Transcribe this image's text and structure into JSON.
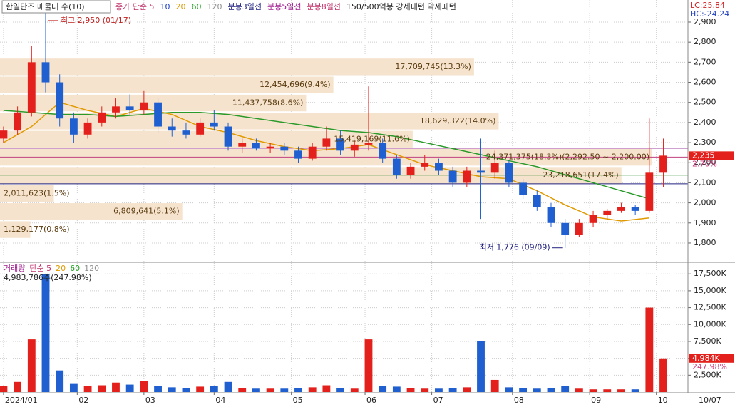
{
  "chart_data": {
    "type": "candlestick",
    "title": "한일단조 매물대 수(10)",
    "price_legend": [
      {
        "text": "종가 단순 5",
        "color": "#c0306a"
      },
      {
        "text": "10",
        "color": "#2040c0"
      },
      {
        "text": "20",
        "color": "#e09a00"
      },
      {
        "text": "60",
        "color": "#20a020"
      },
      {
        "text": "120",
        "color": "#909090"
      },
      {
        "text": "분봉3일선",
        "color": "#202080"
      },
      {
        "text": "분봉5일선",
        "color": "#a02090"
      },
      {
        "text": "분봉8일선",
        "color": "#c0306a"
      },
      {
        "text": "150/500억봉 강세패턴  약세패턴",
        "color": "#222222"
      }
    ],
    "corner_text": [
      "LC:25.84",
      "HC:-24.24"
    ],
    "xlim": [
      -1,
      195
    ],
    "xticks": [
      {
        "value": 0,
        "label": "2024/01"
      },
      {
        "value": 21,
        "label": "02"
      },
      {
        "value": 40,
        "label": "03"
      },
      {
        "value": 60,
        "label": "04"
      },
      {
        "value": 82,
        "label": "05"
      },
      {
        "value": 103,
        "label": "06"
      },
      {
        "value": 122,
        "label": "07"
      },
      {
        "value": 145,
        "label": "08"
      },
      {
        "value": 167,
        "label": "09"
      },
      {
        "value": 186,
        "label": "10"
      }
    ],
    "last_date": "10/07",
    "ylim": [
      1704,
      3010
    ],
    "yticks": [
      {
        "value": 1800,
        "label": "1,800"
      },
      {
        "value": 1900,
        "label": "1,900"
      },
      {
        "value": 2000,
        "label": "2,000"
      },
      {
        "value": 2100,
        "label": "2,100"
      },
      {
        "value": 2200,
        "label": "2,200"
      },
      {
        "value": 2300,
        "label": "2,300"
      },
      {
        "value": 2400,
        "label": "2,400"
      },
      {
        "value": 2500,
        "label": "2,500"
      },
      {
        "value": 2600,
        "label": "2,600"
      },
      {
        "value": 2700,
        "label": "2,700"
      },
      {
        "value": 2800,
        "label": "2,800"
      },
      {
        "value": 2900,
        "label": "2,900"
      }
    ],
    "grid": true,
    "up_color": "#e3201b",
    "down_color": "#1f5fcf",
    "candles": [
      {
        "x": 0,
        "open": 2320,
        "high": 2380,
        "low": 2300,
        "close": 2360
      },
      {
        "x": 4,
        "open": 2360,
        "high": 2480,
        "low": 2340,
        "close": 2450
      },
      {
        "x": 8,
        "open": 2450,
        "high": 2780,
        "low": 2430,
        "close": 2700
      },
      {
        "x": 12,
        "open": 2700,
        "high": 2950,
        "low": 2550,
        "close": 2600
      },
      {
        "x": 16,
        "open": 2600,
        "high": 2640,
        "low": 2380,
        "close": 2420
      },
      {
        "x": 20,
        "open": 2420,
        "high": 2450,
        "low": 2300,
        "close": 2340
      },
      {
        "x": 24,
        "open": 2340,
        "high": 2420,
        "low": 2320,
        "close": 2400
      },
      {
        "x": 28,
        "open": 2400,
        "high": 2480,
        "low": 2380,
        "close": 2450
      },
      {
        "x": 32,
        "open": 2450,
        "high": 2520,
        "low": 2420,
        "close": 2480
      },
      {
        "x": 36,
        "open": 2480,
        "high": 2540,
        "low": 2440,
        "close": 2460
      },
      {
        "x": 40,
        "open": 2460,
        "high": 2560,
        "low": 2440,
        "close": 2500
      },
      {
        "x": 44,
        "open": 2500,
        "high": 2520,
        "low": 2350,
        "close": 2380
      },
      {
        "x": 48,
        "open": 2380,
        "high": 2420,
        "low": 2330,
        "close": 2360
      },
      {
        "x": 52,
        "open": 2360,
        "high": 2400,
        "low": 2320,
        "close": 2340
      },
      {
        "x": 56,
        "open": 2340,
        "high": 2420,
        "low": 2330,
        "close": 2400
      },
      {
        "x": 60,
        "open": 2400,
        "high": 2460,
        "low": 2360,
        "close": 2380
      },
      {
        "x": 64,
        "open": 2380,
        "high": 2400,
        "low": 2260,
        "close": 2280
      },
      {
        "x": 68,
        "open": 2280,
        "high": 2320,
        "low": 2250,
        "close": 2300
      },
      {
        "x": 72,
        "open": 2300,
        "high": 2320,
        "low": 2260,
        "close": 2270
      },
      {
        "x": 76,
        "open": 2270,
        "high": 2300,
        "low": 2250,
        "close": 2280
      },
      {
        "x": 80,
        "open": 2280,
        "high": 2300,
        "low": 2240,
        "close": 2260
      },
      {
        "x": 84,
        "open": 2260,
        "high": 2280,
        "low": 2200,
        "close": 2220
      },
      {
        "x": 88,
        "open": 2220,
        "high": 2300,
        "low": 2210,
        "close": 2280
      },
      {
        "x": 92,
        "open": 2280,
        "high": 2380,
        "low": 2260,
        "close": 2320
      },
      {
        "x": 96,
        "open": 2320,
        "high": 2360,
        "low": 2240,
        "close": 2260
      },
      {
        "x": 100,
        "open": 2260,
        "high": 2310,
        "low": 2230,
        "close": 2290
      },
      {
        "x": 104,
        "open": 2290,
        "high": 2580,
        "low": 2260,
        "close": 2300
      },
      {
        "x": 108,
        "open": 2300,
        "high": 2320,
        "low": 2200,
        "close": 2220
      },
      {
        "x": 112,
        "open": 2220,
        "high": 2240,
        "low": 2120,
        "close": 2140
      },
      {
        "x": 116,
        "open": 2140,
        "high": 2200,
        "low": 2120,
        "close": 2180
      },
      {
        "x": 120,
        "open": 2180,
        "high": 2240,
        "low": 2160,
        "close": 2200
      },
      {
        "x": 124,
        "open": 2200,
        "high": 2220,
        "low": 2140,
        "close": 2160
      },
      {
        "x": 128,
        "open": 2160,
        "high": 2180,
        "low": 2080,
        "close": 2100
      },
      {
        "x": 132,
        "open": 2100,
        "high": 2180,
        "low": 2080,
        "close": 2160
      },
      {
        "x": 136,
        "open": 2160,
        "high": 2320,
        "low": 1920,
        "close": 2150
      },
      {
        "x": 140,
        "open": 2150,
        "high": 2260,
        "low": 2120,
        "close": 2200
      },
      {
        "x": 144,
        "open": 2200,
        "high": 2210,
        "low": 2080,
        "close": 2100
      },
      {
        "x": 148,
        "open": 2100,
        "high": 2120,
        "low": 2020,
        "close": 2040
      },
      {
        "x": 152,
        "open": 2040,
        "high": 2060,
        "low": 1960,
        "close": 1980
      },
      {
        "x": 156,
        "open": 1980,
        "high": 2000,
        "low": 1880,
        "close": 1900
      },
      {
        "x": 160,
        "open": 1900,
        "high": 1920,
        "low": 1776,
        "close": 1840
      },
      {
        "x": 164,
        "open": 1840,
        "high": 1920,
        "low": 1830,
        "close": 1900
      },
      {
        "x": 168,
        "open": 1900,
        "high": 1960,
        "low": 1880,
        "close": 1940
      },
      {
        "x": 172,
        "open": 1940,
        "high": 1970,
        "low": 1920,
        "close": 1960
      },
      {
        "x": 176,
        "open": 1960,
        "high": 2000,
        "low": 1950,
        "close": 1980
      },
      {
        "x": 180,
        "open": 1980,
        "high": 1990,
        "low": 1940,
        "close": 1960
      },
      {
        "x": 184,
        "open": 1960,
        "high": 2420,
        "low": 1950,
        "close": 2150
      },
      {
        "x": 188,
        "open": 2150,
        "high": 2320,
        "low": 2080,
        "close": 2235
      }
    ],
    "moving_averages": [
      {
        "color": "#e09a00",
        "x": [
          0,
          8,
          16,
          24,
          32,
          40,
          48,
          56,
          64,
          72,
          80,
          88,
          96,
          104,
          112,
          120,
          128,
          136,
          144,
          152,
          160,
          168,
          176,
          184
        ],
        "values": [
          2300,
          2380,
          2500,
          2460,
          2430,
          2470,
          2440,
          2380,
          2350,
          2310,
          2280,
          2260,
          2270,
          2290,
          2240,
          2190,
          2160,
          2130,
          2120,
          2060,
          1990,
          1930,
          1910,
          1925
        ]
      },
      {
        "color": "#2a9a2a",
        "x": [
          0,
          8,
          16,
          24,
          32,
          40,
          48,
          56,
          64,
          72,
          80,
          88,
          96,
          104,
          112,
          120,
          128,
          136,
          144,
          152,
          160,
          168,
          176,
          184
        ],
        "values": [
          2460,
          2450,
          2440,
          2440,
          2430,
          2440,
          2450,
          2450,
          2440,
          2420,
          2400,
          2380,
          2360,
          2350,
          2330,
          2300,
          2270,
          2240,
          2210,
          2180,
          2140,
          2100,
          2060,
          2020
        ]
      }
    ],
    "levels": [
      {
        "value": 2272,
        "color": "#a040a0"
      },
      {
        "value": 2228,
        "color": "#c04080"
      },
      {
        "value": 2138,
        "color": "#2a8a2a"
      },
      {
        "value": 2095,
        "color": "#202080"
      }
    ],
    "profile_color": "#f6e3cd",
    "profile_scale": 24371375,
    "volume_profile": [
      {
        "low": 1822,
        "high": 1912,
        "volume": 1129177,
        "label": "1,129,177(0.8%)"
      },
      {
        "low": 1912,
        "high": 2002,
        "volume": 6809641,
        "label": "6,809,641(5.1%)"
      },
      {
        "low": 2002,
        "high": 2092,
        "volume": 2011623,
        "label": "2,011,623(1.5%)"
      },
      {
        "low": 2092,
        "high": 2182,
        "volume": 23218651,
        "label": "23,218,651(17.4%)"
      },
      {
        "low": 2182,
        "high": 2272,
        "volume": 24371375,
        "label": "24,371,375(18.3%)(2,292.50 ~ 2,200.00)"
      },
      {
        "low": 2272,
        "high": 2362,
        "volume": 15419169,
        "label": "15,419,169(11.6%)"
      },
      {
        "low": 2362,
        "high": 2452,
        "volume": 18629322,
        "label": "18,629,322(14.0%)"
      },
      {
        "low": 2452,
        "high": 2542,
        "volume": 11437758,
        "label": "11,437,758(8.6%)"
      },
      {
        "low": 2542,
        "high": 2632,
        "volume": 12454696,
        "label": "12,454,696(9.4%)"
      },
      {
        "low": 2632,
        "high": 2722,
        "volume": 17709745,
        "label": "17,709,745(13.3%)"
      }
    ],
    "current_price": {
      "value": 2235,
      "label": "2,235"
    },
    "current_change": "2.76%",
    "annotations": [
      {
        "text": "최고 2,950 (01/17)",
        "x": 12,
        "value": 2950,
        "side": "right"
      },
      {
        "text": "최저 1,776 (09/09)",
        "x": 160,
        "value": 1776,
        "side": "left"
      }
    ],
    "volume_legend": [
      {
        "text": "거래량",
        "color": "#a02090"
      },
      {
        "text": "단순 5",
        "color": "#c0306a"
      },
      {
        "text": "20",
        "color": "#e09a00"
      },
      {
        "text": "60",
        "color": "#20a020"
      },
      {
        "text": "120",
        "color": "#909090"
      }
    ],
    "volume_info": "4,983,786주(247.98%)",
    "volume_ylim": [
      0,
      19000
    ],
    "volume_yticks": [
      {
        "value": 2500,
        "label": "2,500K"
      },
      {
        "value": 5000,
        "label": "5,000K"
      },
      {
        "value": 7500,
        "label": "7,500K"
      },
      {
        "value": 10000,
        "label": "10,000K"
      },
      {
        "value": 12500,
        "label": "12,500K"
      },
      {
        "value": 15000,
        "label": "15,000K"
      },
      {
        "value": 17500,
        "label": "17,500K"
      }
    ],
    "volumes": [
      900,
      1500,
      7800,
      17500,
      3200,
      1200,
      900,
      1000,
      1400,
      1100,
      1600,
      900,
      700,
      600,
      800,
      900,
      1500,
      600,
      500,
      500,
      500,
      600,
      700,
      1000,
      600,
      500,
      7800,
      900,
      800,
      600,
      500,
      500,
      600,
      700,
      7500,
      1800,
      700,
      600,
      500,
      600,
      900,
      500,
      400,
      400,
      400,
      400,
      12500,
      4984
    ],
    "current_volume": {
      "value": 4984,
      "label": "4,984K"
    },
    "current_volume_change": "247.98%"
  }
}
